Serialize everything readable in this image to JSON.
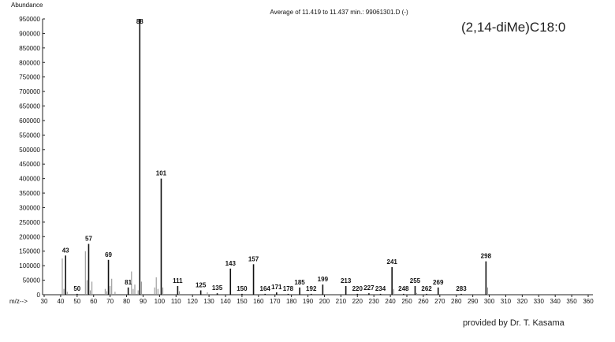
{
  "chart_data": {
    "type": "stem",
    "title": "Average of 11.419 to 11.437 min.: 99061301.D (-)",
    "y_label": "Abundance",
    "x_label": "m/z-->",
    "compound": "(2,14-diMe)C18:0",
    "credit": "provided by Dr. T. Kasama",
    "color": "#111111",
    "minor_color": "#8a8a8a",
    "x": [
      43,
      50,
      57,
      69,
      81,
      88,
      101,
      111,
      125,
      135,
      143,
      150,
      157,
      164,
      171,
      178,
      185,
      192,
      199,
      213,
      220,
      227,
      234,
      241,
      248,
      255,
      262,
      269,
      283,
      298
    ],
    "values": [
      135000,
      3000,
      175000,
      120000,
      25000,
      950000,
      400000,
      30000,
      15000,
      5000,
      90000,
      3000,
      105000,
      3000,
      8000,
      3000,
      25000,
      3000,
      35000,
      30000,
      3000,
      5000,
      3000,
      95000,
      3000,
      30000,
      3000,
      25000,
      3000,
      115000
    ],
    "minor": {
      "x": [
        41,
        42,
        44,
        55,
        56,
        58,
        59,
        67,
        68,
        70,
        71,
        73,
        83,
        84,
        85,
        87,
        89,
        97,
        98,
        99,
        102,
        112,
        129,
        242,
        256,
        299
      ],
      "values": [
        125000,
        20000,
        10000,
        150000,
        50000,
        15000,
        45000,
        20000,
        12000,
        30000,
        55000,
        10000,
        80000,
        20000,
        35000,
        15000,
        45000,
        25000,
        60000,
        20000,
        25000,
        12000,
        8000,
        20000,
        6000,
        25000
      ]
    },
    "xlim": [
      30,
      360
    ],
    "ylim": [
      0,
      950000
    ],
    "xticks": [
      30,
      40,
      50,
      60,
      70,
      80,
      90,
      100,
      110,
      120,
      130,
      140,
      150,
      160,
      170,
      180,
      190,
      200,
      210,
      220,
      230,
      240,
      250,
      260,
      270,
      280,
      290,
      300,
      310,
      320,
      330,
      340,
      350,
      360
    ],
    "yticks": [
      0,
      50000,
      100000,
      150000,
      200000,
      250000,
      300000,
      350000,
      400000,
      450000,
      500000,
      550000,
      600000,
      650000,
      700000,
      750000,
      800000,
      850000,
      900000,
      950000
    ]
  }
}
